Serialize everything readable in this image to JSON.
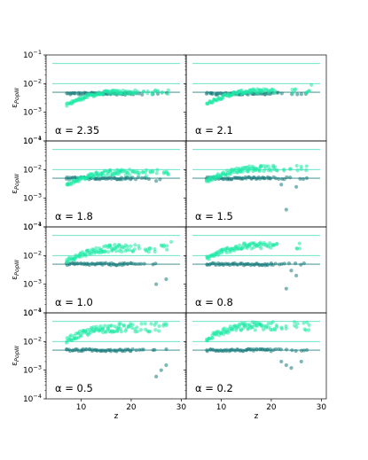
{
  "chart_data": {
    "type": "scatter",
    "layout": "4 rows x 2 columns, shared x and y axes",
    "xlabel": "z",
    "ylabel": "ε_PopIII",
    "x_ticks": [
      10,
      20,
      30
    ],
    "xlim": [
      3,
      31
    ],
    "y_scale": "log",
    "ylim": [
      0.0001,
      0.1
    ],
    "y_ticks": [
      "10^-1",
      "10^-2",
      "10^-3",
      "10^-4"
    ],
    "reference_lines": [
      0.05,
      0.01,
      0.005
    ],
    "colors": {
      "bright": "#1de9a6",
      "dark": "#157a7a",
      "line_light": "#4ce0bd",
      "line_dark": "#1a7d7b"
    },
    "panels": [
      {
        "label": "α = 2.35",
        "alpha": 2.35,
        "bright_level": 0.005,
        "dark_level": 0.005,
        "dark_offset": -0.05,
        "spread": 0.15,
        "outliers": []
      },
      {
        "label": "α = 2.1",
        "alpha": 2.1,
        "bright_level": 0.0055,
        "dark_level": 0.005,
        "dark_offset": -0.05,
        "spread": 0.15,
        "outliers": [
          [
            28,
            0.009
          ]
        ]
      },
      {
        "label": "α = 1.8",
        "alpha": 1.8,
        "bright_level": 0.008,
        "dark_level": 0.005,
        "dark_offset": 0.0,
        "spread": 0.2,
        "outliers": [
          [
            23,
            0.006
          ],
          [
            25,
            0.004
          ]
        ]
      },
      {
        "label": "α = 1.5",
        "alpha": 1.5,
        "bright_level": 0.011,
        "dark_level": 0.005,
        "dark_offset": 0.0,
        "spread": 0.2,
        "outliers": [
          [
            23,
            0.0004
          ],
          [
            25,
            0.0025
          ],
          [
            22,
            0.003
          ]
        ]
      },
      {
        "label": "α = 1.0",
        "alpha": 1.0,
        "bright_level": 0.018,
        "dark_level": 0.005,
        "dark_offset": 0.0,
        "spread": 0.25,
        "outliers": [
          [
            25,
            0.001
          ],
          [
            27,
            0.0015
          ],
          [
            28,
            0.03
          ]
        ]
      },
      {
        "label": "α = 0.8",
        "alpha": 0.8,
        "bright_level": 0.022,
        "dark_level": 0.005,
        "dark_offset": 0.0,
        "spread": 0.25,
        "outliers": [
          [
            23,
            0.0007
          ],
          [
            25,
            0.002
          ],
          [
            24,
            0.003
          ]
        ]
      },
      {
        "label": "α = 0.5",
        "alpha": 0.5,
        "bright_level": 0.03,
        "dark_level": 0.005,
        "dark_offset": 0.0,
        "spread": 0.3,
        "outliers": [
          [
            25,
            0.0006
          ],
          [
            26,
            0.001
          ],
          [
            27,
            0.0015
          ],
          [
            25,
            0.045
          ]
        ]
      },
      {
        "label": "α = 0.2",
        "alpha": 0.2,
        "bright_level": 0.035,
        "dark_level": 0.005,
        "dark_offset": 0.0,
        "spread": 0.3,
        "outliers": [
          [
            22,
            0.002
          ],
          [
            23,
            0.0015
          ],
          [
            24,
            0.0012
          ],
          [
            26,
            0.002
          ]
        ]
      }
    ]
  }
}
